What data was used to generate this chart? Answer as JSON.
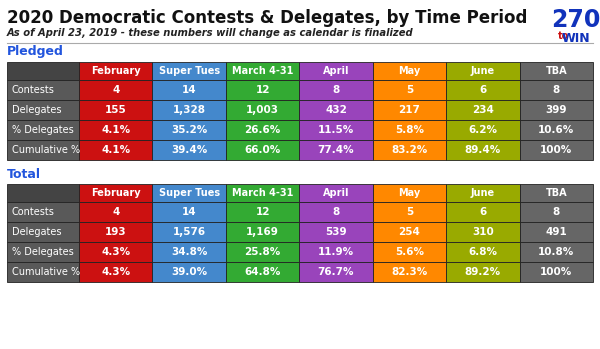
{
  "title": "2020 Democratic Contests & Delegates, by Time Period",
  "subtitle": "As of April 23, 2019 - these numbers will change as calendar is finalized",
  "col_headers": [
    "February",
    "Super Tues",
    "March 4-31",
    "April",
    "May",
    "June",
    "TBA"
  ],
  "col_colors": [
    "#cc1111",
    "#4488cc",
    "#33aa33",
    "#9944bb",
    "#ff8800",
    "#99aa00",
    "#666666"
  ],
  "row_labels": [
    "Contests",
    "Delegates",
    "% Delegates",
    "Cumulative %"
  ],
  "label_bg": "#595959",
  "header_bg": "#444444",
  "pledged": {
    "Contests": [
      "4",
      "14",
      "12",
      "8",
      "5",
      "6",
      "8"
    ],
    "Delegates": [
      "155",
      "1,328",
      "1,003",
      "432",
      "217",
      "234",
      "399"
    ],
    "% Delegates": [
      "4.1%",
      "35.2%",
      "26.6%",
      "11.5%",
      "5.8%",
      "6.2%",
      "10.6%"
    ],
    "Cumulative %": [
      "4.1%",
      "39.4%",
      "66.0%",
      "77.4%",
      "83.2%",
      "89.4%",
      "100%"
    ]
  },
  "total": {
    "Contests": [
      "4",
      "14",
      "12",
      "8",
      "5",
      "6",
      "8"
    ],
    "Delegates": [
      "193",
      "1,576",
      "1,169",
      "539",
      "254",
      "310",
      "491"
    ],
    "% Delegates": [
      "4.3%",
      "34.8%",
      "25.8%",
      "11.9%",
      "5.6%",
      "6.8%",
      "10.8%"
    ],
    "Cumulative %": [
      "4.3%",
      "39.0%",
      "64.8%",
      "76.7%",
      "82.3%",
      "89.2%",
      "100%"
    ]
  },
  "section_color": "#2255dd",
  "bg_color": "#ffffff",
  "border_color": "#222222",
  "title_color": "#111111",
  "subtitle_color": "#222222",
  "logo_270_color": "#1133bb",
  "logo_to_color": "#cc1111",
  "logo_win_color": "#1133bb"
}
